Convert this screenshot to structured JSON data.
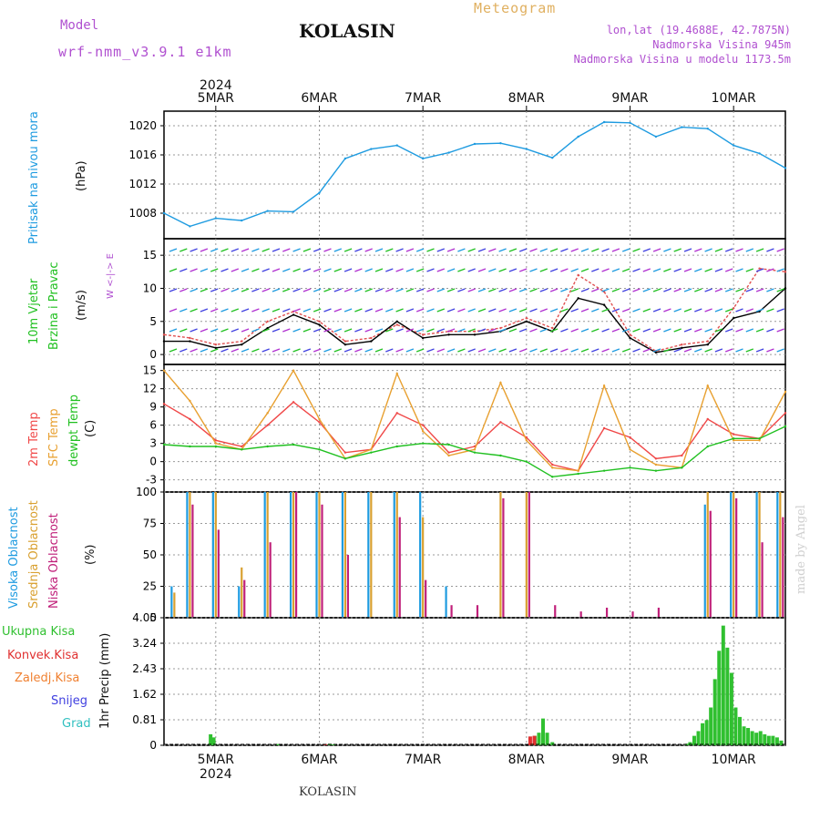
{
  "header": {
    "model_label": "Model",
    "model_name": "wrf-nmm_v3.9.1 e1km",
    "site_title": "KOLASIN",
    "meteogram_label": "Meteogram",
    "coords": "lon,lat (19.4688E, 42.7875N)",
    "station_elevation": "Nadmorska Visina 945m",
    "model_elevation": "Nadmorska Visina u modelu 1173.5m"
  },
  "footer": {
    "site_name": "KOLASIN",
    "watermark": "made by Angel"
  },
  "time_axis": {
    "year": "2024",
    "days": [
      "5MAR",
      "6MAR",
      "7MAR",
      "8MAR",
      "9MAR",
      "10MAR"
    ]
  },
  "colors": {
    "pressure": "#1e9be0",
    "temp_2m": "#f04848",
    "temp_sfc": "#e8a030",
    "dewpoint": "#20c020",
    "wind_speed": "#e05050",
    "gust": "#000000",
    "high_cloud": "#1e9be0",
    "mid_cloud": "#d9a030",
    "low_cloud": "#c0207a",
    "total_precip": "#30c030",
    "convective_precip": "#e03030",
    "freezing_precip": "#f08030",
    "snow": "#4040e0",
    "hail": "#30c0c0",
    "grid": "#999999"
  },
  "chart_data": [
    {
      "type": "line",
      "panel": "pressure",
      "ylabel_main": "Pritisak na nivou mora",
      "ylabel_unit": "(hPa)",
      "ylim": [
        1004.5,
        1022
      ],
      "yticks": [
        "1008",
        "1012",
        "1016",
        "1020"
      ],
      "grid": true,
      "x": [
        0,
        0.25,
        0.5,
        0.75,
        1,
        1.25,
        1.5,
        1.75,
        2,
        2.25,
        2.5,
        2.75,
        3,
        3.25,
        3.5,
        3.75,
        4,
        4.25,
        4.5,
        4.75,
        5,
        5.25,
        5.5,
        5.75,
        6
      ],
      "series": [
        {
          "values": [
            1008.0,
            1006.2,
            1007.3,
            1007.0,
            1008.3,
            1008.2,
            1010.8,
            1015.5,
            1016.8,
            1017.3,
            1015.5,
            1016.3,
            1017.5,
            1017.6,
            1016.8,
            1015.6,
            1018.5,
            1020.5,
            1020.4,
            1018.5,
            1019.8,
            1019.6,
            1017.3,
            1016.2,
            1014.2
          ]
        }
      ]
    },
    {
      "type": "line",
      "panel": "wind",
      "ylabel_main": "10m Vjetar",
      "ylabel_sub": "Brzina i Pravac",
      "ylabel_unit": "(m/s)",
      "compass": "W <-|-> E",
      "ylim": [
        -1.5,
        17.5
      ],
      "yticks": [
        "0",
        "5",
        "10",
        "15"
      ],
      "grid": true,
      "x": [
        0,
        0.25,
        0.5,
        0.75,
        1,
        1.25,
        1.5,
        1.75,
        2,
        2.25,
        2.5,
        2.75,
        3,
        3.25,
        3.5,
        3.75,
        4,
        4.25,
        4.5,
        4.75,
        5,
        5.25,
        5.5,
        5.75,
        6
      ],
      "series": [
        {
          "values": [
            3.0,
            2.5,
            1.5,
            2.0,
            5.0,
            6.5,
            5.0,
            2.0,
            2.5,
            4.5,
            3.0,
            3.5,
            3.5,
            4.0,
            5.5,
            4.0,
            12.0,
            9.5,
            3.0,
            0.5,
            1.5,
            2.0,
            7.0,
            13.0,
            12.5
          ]
        },
        {
          "values": [
            2.0,
            2.0,
            1.0,
            1.5,
            4.0,
            6.0,
            4.5,
            1.5,
            2.0,
            5.0,
            2.5,
            3.0,
            3.0,
            3.5,
            5.0,
            3.5,
            8.5,
            7.5,
            2.5,
            0.3,
            1.0,
            1.5,
            5.5,
            6.5,
            10.0
          ]
        }
      ]
    },
    {
      "type": "line",
      "panel": "temperature",
      "ylabel_main": "2m Temp",
      "ylabel_sub": "SFC Temp",
      "ylabel_sub2": "dewpt Temp",
      "ylabel_unit": "(C)",
      "ylim": [
        -5,
        16
      ],
      "yticks": [
        "-3",
        "0",
        "3",
        "6",
        "9",
        "12",
        "15"
      ],
      "grid": true,
      "x": [
        0,
        0.25,
        0.5,
        0.75,
        1,
        1.25,
        1.5,
        1.75,
        2,
        2.25,
        2.5,
        2.75,
        3,
        3.25,
        3.5,
        3.75,
        4,
        4.25,
        4.5,
        4.75,
        5,
        5.25,
        5.5,
        5.75,
        6
      ],
      "series": [
        {
          "name": "2m Temp",
          "values": [
            9.5,
            7.0,
            3.5,
            2.5,
            6.0,
            9.8,
            6.5,
            1.5,
            2.0,
            8.0,
            6.0,
            1.5,
            2.5,
            6.5,
            4.0,
            -0.5,
            -1.5,
            5.5,
            4.0,
            0.5,
            1.0,
            7.0,
            4.5,
            3.8,
            8.0
          ]
        },
        {
          "name": "SFC Temp",
          "values": [
            15.0,
            10.0,
            3.0,
            2.0,
            8.0,
            15.0,
            7.0,
            0.5,
            2.0,
            14.5,
            5.0,
            1.0,
            2.0,
            13.0,
            3.5,
            -1.0,
            -1.5,
            12.5,
            2.0,
            -0.5,
            -1.0,
            12.5,
            3.5,
            3.5,
            11.5
          ]
        },
        {
          "name": "dewpt Temp",
          "values": [
            2.8,
            2.5,
            2.5,
            2.0,
            2.5,
            2.8,
            2.0,
            0.5,
            1.5,
            2.5,
            3.0,
            2.8,
            1.5,
            1.0,
            0.0,
            -2.5,
            -2.0,
            -1.5,
            -1.0,
            -1.5,
            -1.0,
            2.5,
            3.8,
            3.8,
            5.8
          ]
        }
      ]
    },
    {
      "type": "bar",
      "panel": "clouds",
      "ylabel_main": "Visoka Oblacnost",
      "ylabel_sub": "Srednja Oblacnost",
      "ylabel_sub2": "Niska Oblacnost",
      "ylabel_unit": "(%)",
      "ylim": [
        0,
        100
      ],
      "yticks": [
        "0",
        "25",
        "50",
        "75",
        "100"
      ],
      "grid": true,
      "x": [
        0.1,
        0.25,
        0.5,
        0.75,
        1.0,
        1.25,
        1.5,
        1.75,
        2.0,
        2.25,
        2.5,
        2.75,
        3.0,
        3.25,
        3.5,
        3.75,
        4.0,
        4.25,
        4.5,
        4.75,
        5.0,
        5.25,
        5.5,
        5.75,
        5.95
      ],
      "series": [
        {
          "name": "Visoka Oblacnost",
          "values": [
            25,
            100,
            100,
            25,
            100,
            100,
            100,
            100,
            100,
            100,
            100,
            25,
            0,
            0,
            0,
            0,
            0,
            0,
            0,
            0,
            0,
            90,
            100,
            100,
            100
          ]
        },
        {
          "name": "Srednja Oblacnost",
          "values": [
            20,
            100,
            100,
            40,
            100,
            100,
            100,
            100,
            100,
            100,
            80,
            0,
            0,
            100,
            100,
            0,
            0,
            0,
            0,
            0,
            0,
            100,
            100,
            100,
            100
          ]
        },
        {
          "name": "Niska Oblacnost",
          "values": [
            0,
            90,
            70,
            30,
            60,
            100,
            90,
            50,
            0,
            80,
            30,
            10,
            10,
            95,
            100,
            10,
            5,
            8,
            5,
            8,
            0,
            85,
            95,
            60,
            80
          ]
        }
      ]
    },
    {
      "type": "bar",
      "panel": "precipitation",
      "ylabel_main": "1hr Precip (mm)",
      "ylim": [
        0,
        4.05
      ],
      "yticks": [
        "0",
        "0.81",
        "1.62",
        "2.43",
        "3.24",
        "4.05"
      ],
      "grid": true,
      "legend": [
        "Ukupna Kisa",
        "Konvek.Kisa",
        "Zaledj.Kisa",
        "Snijeg",
        "Grad"
      ],
      "x": [
        0.45,
        0.48,
        1.1,
        1.6,
        1.64,
        3.55,
        3.58,
        3.62,
        3.66,
        3.7,
        3.75,
        5.05,
        5.08,
        5.12,
        5.16,
        5.2,
        5.24,
        5.28,
        5.32,
        5.36,
        5.4,
        5.44,
        5.48,
        5.52,
        5.56,
        5.6,
        5.64,
        5.68,
        5.72,
        5.76,
        5.8,
        5.84,
        5.88,
        5.92,
        5.96
      ],
      "series": [
        {
          "name": "Ukupna Kisa",
          "values": [
            0.35,
            0.25,
            0.04,
            0.05,
            0.03,
            0.05,
            0.3,
            0.4,
            0.85,
            0.4,
            0.1,
            0.05,
            0.1,
            0.3,
            0.45,
            0.7,
            0.8,
            1.2,
            2.1,
            3.0,
            3.8,
            3.1,
            2.3,
            1.2,
            0.9,
            0.6,
            0.55,
            0.45,
            0.4,
            0.45,
            0.35,
            0.3,
            0.3,
            0.25,
            0.15
          ]
        },
        {
          "name": "Konvek.Kisa",
          "values": [
            0,
            0,
            0,
            0.04,
            0,
            0,
            0.28,
            0.3,
            0,
            0,
            0,
            0,
            0,
            0,
            0,
            0,
            0,
            0,
            0,
            0,
            0,
            0,
            0,
            0,
            0,
            0,
            0,
            0,
            0,
            0,
            0,
            0,
            0,
            0,
            0
          ]
        }
      ]
    }
  ]
}
